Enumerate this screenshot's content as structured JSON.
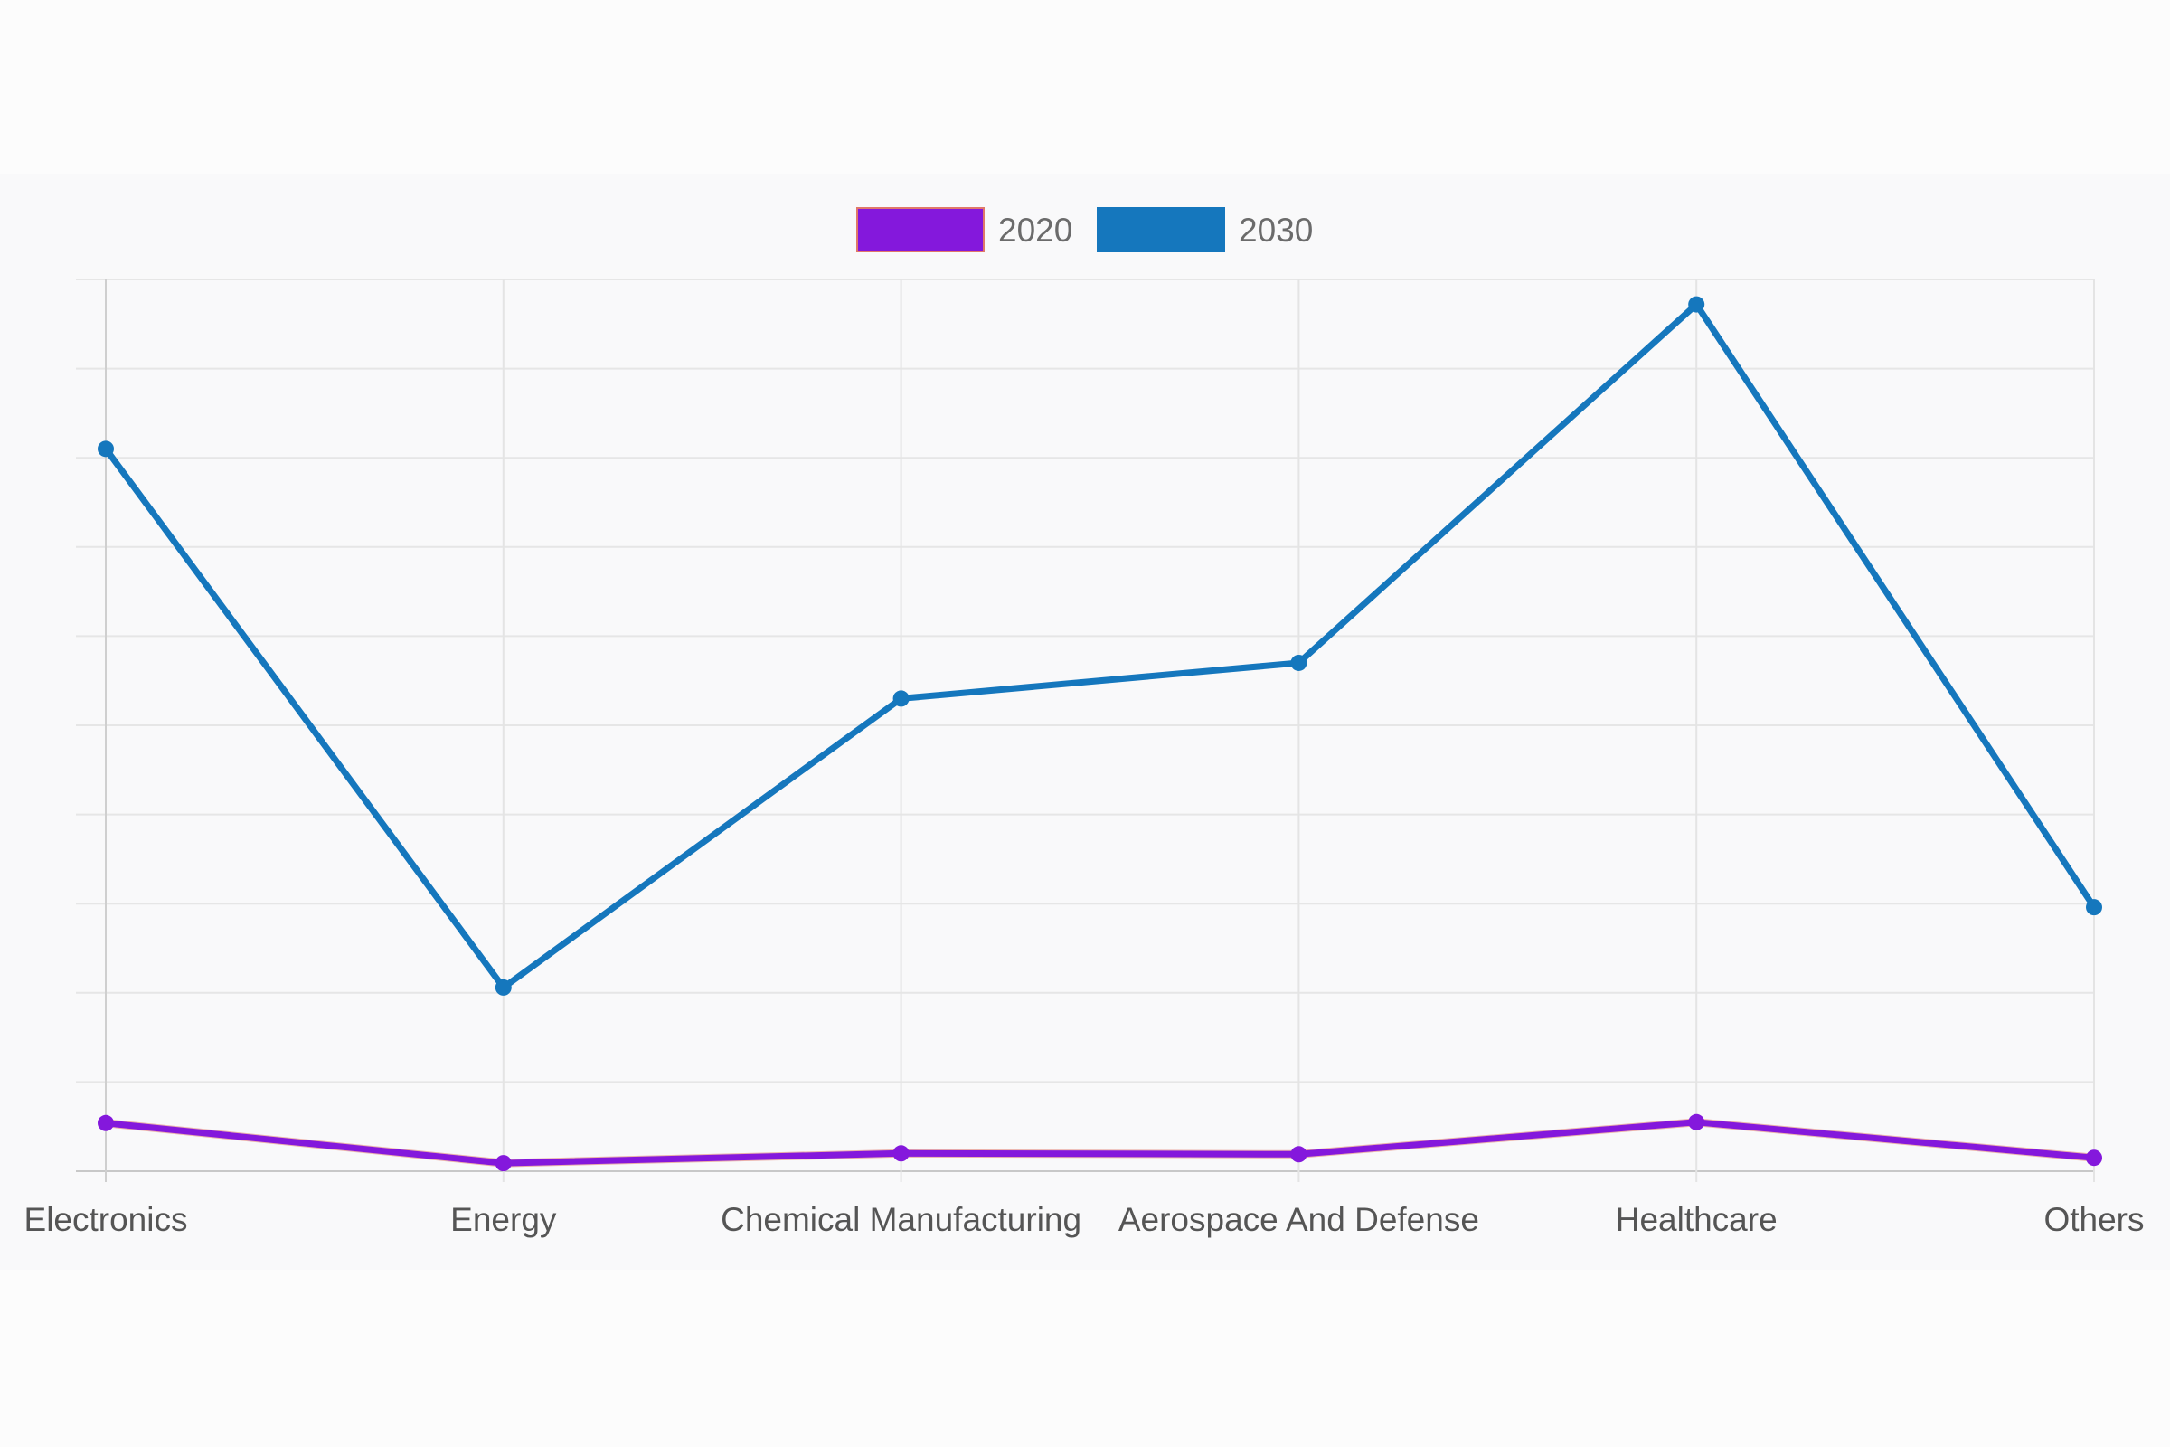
{
  "chart_data": {
    "type": "line",
    "categories": [
      "Electronics",
      "Energy",
      "Chemical Manufacturing",
      "Aerospace And Defense",
      "Healthcare",
      "Others"
    ],
    "series": [
      {
        "name": "2020",
        "values": [
          0.54,
          0.09,
          0.2,
          0.19,
          0.55,
          0.15
        ],
        "color": "#8418dc",
        "border_color": "#e0786a"
      },
      {
        "name": "2030",
        "values": [
          8.1,
          2.06,
          5.3,
          5.7,
          9.72,
          2.96
        ],
        "color": "#1577bd"
      }
    ],
    "ylim": [
      0,
      10
    ],
    "y_gridlines": 10,
    "y_tick_labels_visible": false,
    "grid": true,
    "legend_position": "top-center"
  }
}
